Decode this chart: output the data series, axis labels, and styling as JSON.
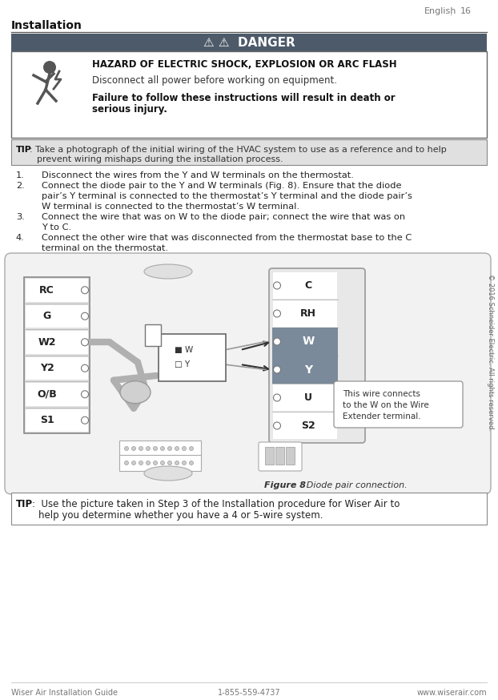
{
  "page_header_text": "English",
  "page_number": "16",
  "section_title": "Installation",
  "danger_header": "⚠ ⚠  DANGER",
  "danger_header_bg": "#4d5a6a",
  "hazard_title": "HAZARD OF ELECTRIC SHOCK, EXPLOSION OR ARC FLASH",
  "hazard_line1": "Disconnect all power before working on equipment.",
  "hazard_line2": "Failure to follow these instructions will result in death or",
  "hazard_line3": "serious injury.",
  "tip1_label": "TIP",
  "tip1_colon": ": Take a photograph of the initial wiring of the HVAC system to use as a reference and to help",
  "tip1_line2": "prevent wiring mishaps during the installation process.",
  "steps": [
    [
      "1.",
      "Disconnect the wires from the Y and W terminals on the thermostat."
    ],
    [
      "2.",
      "Connect the diode pair to the Y and W terminals (Fig. 8). Ensure that the diode"
    ],
    [
      "",
      "pair’s Y terminal is connected to the thermostat’s Y terminal and the diode pair’s"
    ],
    [
      "",
      "W terminal is connected to the thermostat’s W terminal."
    ],
    [
      "3.",
      "Connect the wire that was on W to the diode pair; connect the wire that was on"
    ],
    [
      "",
      "Y to C."
    ],
    [
      "4.",
      "Connect the other wire that was disconnected from the thermostat base to the C"
    ],
    [
      "",
      "terminal on the thermostat."
    ]
  ],
  "figure_caption_bold": "Figure 8",
  "figure_caption_rest": " : Diode pair connection.",
  "callout_text": "This wire connects\nto the W on the Wire\nExtender terminal.",
  "tip2_label": "TIP",
  "tip2_line1": ":  Use the picture taken in Step 3 of the Installation procedure for Wiser Air to",
  "tip2_line2": "help you determine whether you have a 4 or 5-wire system.",
  "footer_left": "Wiser Air Installation Guide",
  "footer_center": "1-855-559-4737",
  "footer_right": "www.wiserair.com",
  "copyright": "© 2016 Schneider Electric. All rights reserved.",
  "bg_color": "#ffffff",
  "tip_bg": "#e0e0e0",
  "dark_header_bg": "#4d5a6a",
  "left_panel_labels": [
    "RC",
    "G",
    "W2",
    "Y2",
    "O/B",
    "S1"
  ],
  "right_panel_labels": [
    "C",
    "RH",
    "W",
    "Y",
    "U",
    "S2"
  ]
}
